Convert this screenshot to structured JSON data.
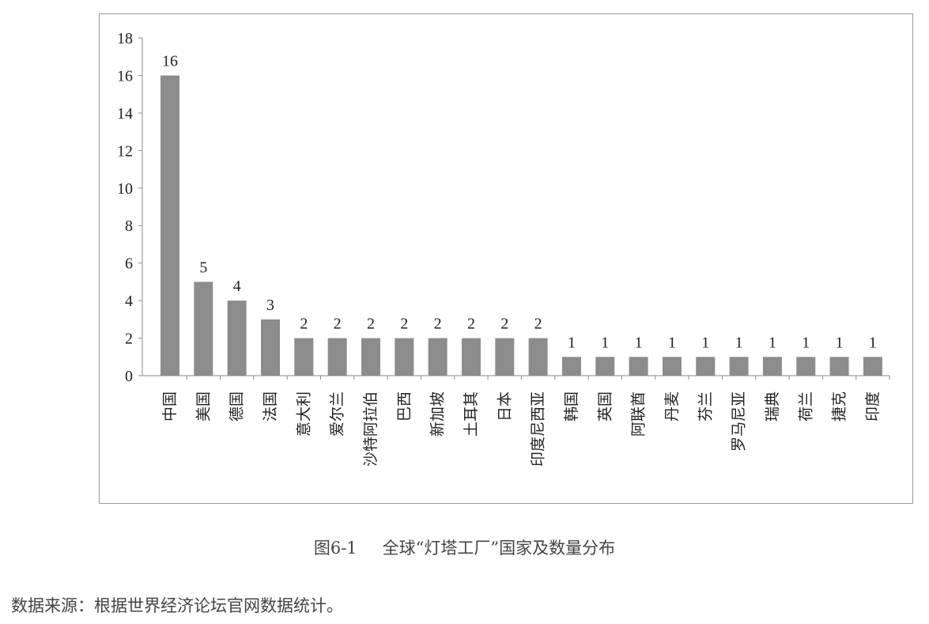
{
  "chart_data": {
    "type": "bar",
    "categories": [
      "中国",
      "美国",
      "德国",
      "法国",
      "意大利",
      "爱尔兰",
      "沙特阿拉伯",
      "巴西",
      "新加坡",
      "土耳其",
      "日本",
      "印度尼西亚",
      "韩国",
      "英国",
      "阿联酋",
      "丹麦",
      "芬兰",
      "罗马尼亚",
      "瑞典",
      "荷兰",
      "捷克",
      "印度"
    ],
    "values": [
      16,
      5,
      4,
      3,
      2,
      2,
      2,
      2,
      2,
      2,
      2,
      2,
      1,
      1,
      1,
      1,
      1,
      1,
      1,
      1,
      1,
      1
    ],
    "yticks": [
      0,
      2,
      4,
      6,
      8,
      10,
      12,
      14,
      16,
      18
    ],
    "ylim": [
      0,
      18
    ],
    "bar_color": "#8c8c8c",
    "grid": false,
    "legend": "none",
    "data_labels": true
  },
  "caption": {
    "number": "图6-1",
    "title": "全球“灯塔工厂”国家及数量分布"
  },
  "source_note": "数据来源：根据世界经济论坛官网数据统计。"
}
